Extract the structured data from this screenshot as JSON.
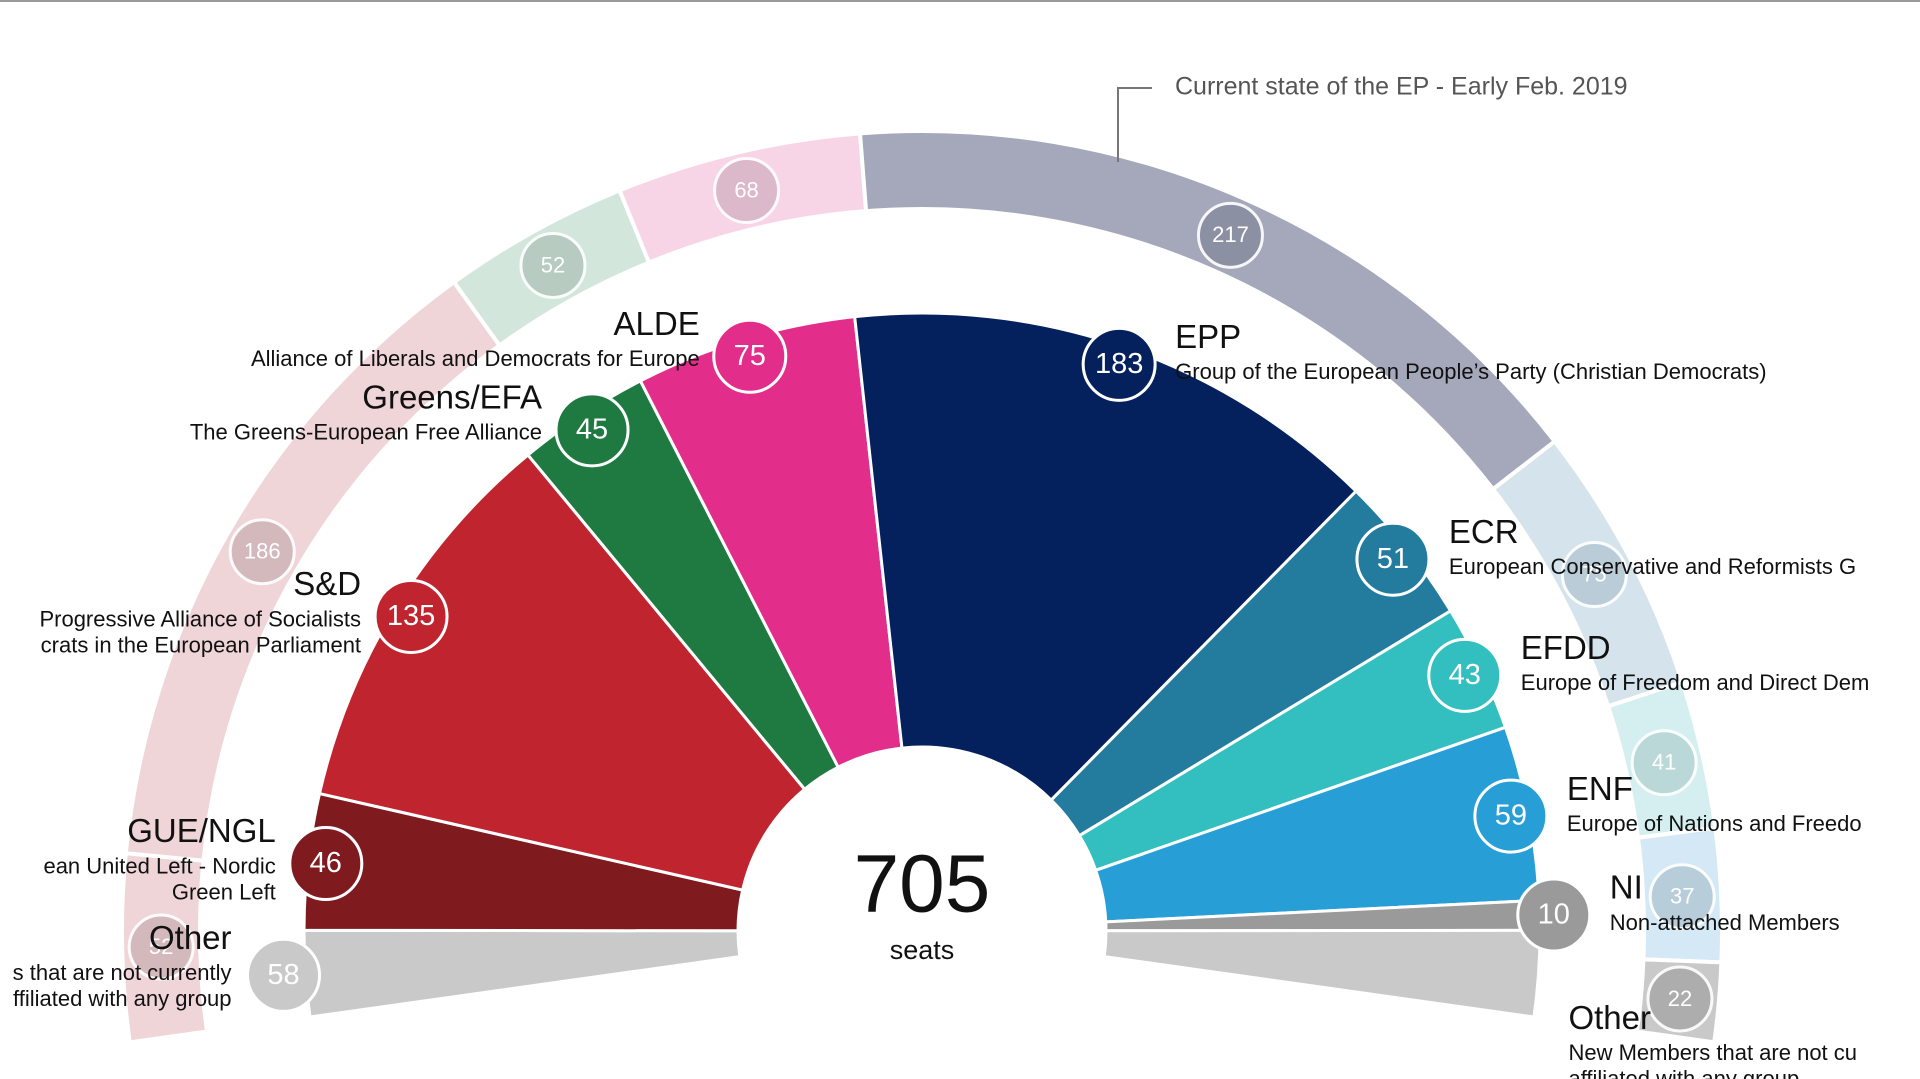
{
  "chart_data": {
    "type": "parliament",
    "annotation": "Current state of the EP - Early Feb. 2019",
    "total": 705,
    "total_label": "seats",
    "other": {
      "name": "Other",
      "value": 58,
      "color": "#c9c9c9",
      "left_description": [
        "s that are not currently",
        "ffiliated with any group"
      ],
      "right_description": [
        "New Members that are not cu",
        "affiliated with any group"
      ]
    },
    "series": [
      {
        "name": "GUE/NGL",
        "color": "#7f1a1e",
        "values": [
          46
        ],
        "description": [
          "ean United Left - Nordic",
          "Green Left"
        ]
      },
      {
        "name": "S&D",
        "color": "#c0242f",
        "values": [
          135
        ],
        "description": [
          "Progressive Alliance of Socialists",
          "crats in the European Parliament"
        ]
      },
      {
        "name": "Greens/EFA",
        "color": "#1e7a40",
        "values": [
          45
        ],
        "description": [
          "The Greens-European Free Alliance"
        ]
      },
      {
        "name": "ALDE",
        "color": "#e32d8a",
        "values": [
          75
        ],
        "description": [
          "Alliance of Liberals and Democrats for Europe"
        ]
      },
      {
        "name": "EPP",
        "color": "#04215e",
        "values": [
          183
        ],
        "description": [
          "Group of the European People’s Party (Christian Democrats)"
        ]
      },
      {
        "name": "ECR",
        "color": "#237b9e",
        "values": [
          51
        ],
        "description": [
          "European Conservative and Reformists G"
        ]
      },
      {
        "name": "EFDD",
        "color": "#33bfbf",
        "values": [
          43
        ],
        "description": [
          "Europe of Freedom and Direct Dem"
        ]
      },
      {
        "name": "ENF",
        "color": "#279fd6",
        "values": [
          59
        ],
        "description": [
          "Europe of Nations and Freedo"
        ]
      },
      {
        "name": "NI",
        "color": "#9a9a9a",
        "values": [
          10
        ],
        "description": [
          "Non-attached Members"
        ]
      }
    ],
    "current": {
      "values": [
        52,
        186,
        52,
        68,
        217,
        75,
        41,
        37,
        22
      ],
      "colors": [
        "#efd5d8",
        "#efd5d8",
        "#d3e6dc",
        "#f7d5e6",
        "#a4a8ba",
        "#d5e3ec",
        "#d5eff0",
        "#d4e8f5",
        "#c9c9c9"
      ],
      "badge_colors": [
        "#d2b7ba",
        "#d2b7ba",
        "#b5c9bd",
        "#d9b5c8",
        "#8a8ea1",
        "#b8cad6",
        "#b9d6d7",
        "#b6cbd8",
        "#ababab"
      ]
    }
  }
}
